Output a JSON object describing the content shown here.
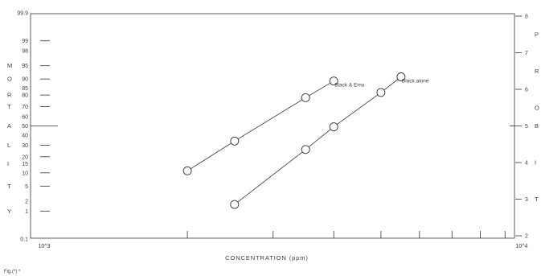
{
  "caption": "Fig.(*) *",
  "chart_data": {
    "type": "line",
    "xlabel": "CONCENTRATION (ppm)",
    "ylabel": "MORTALITY",
    "y2label": "PROBIT",
    "xscale": "log",
    "xlim": [
      1000,
      10000
    ],
    "x_end_labels": [
      "10^3",
      "10^4"
    ],
    "x_minor_ticks": [
      2000,
      3000,
      4000,
      5000,
      6000,
      7000,
      8000,
      9000
    ],
    "yscale": "probit",
    "y_tick_labels": [
      "99.9",
      "99",
      "98",
      "95",
      "90",
      "85",
      "80",
      "70",
      "60",
      "50",
      "40",
      "30",
      "20",
      "15",
      "10",
      "5",
      "2",
      "1",
      "0.1"
    ],
    "y_tick_marks": [
      99,
      95,
      90,
      80,
      70,
      50,
      30,
      20,
      10,
      5,
      1
    ],
    "y2lim": [
      2,
      8
    ],
    "y2_ticks": [
      8,
      7,
      6,
      5,
      4,
      3,
      2
    ],
    "grid": false,
    "series": [
      {
        "name": "Black & Emu",
        "x": [
          2000,
          2500,
          3500,
          4000
        ],
        "y": [
          11,
          34,
          78,
          89
        ]
      },
      {
        "name": "Black alone",
        "x": [
          2500,
          3500,
          4000,
          5000,
          5500
        ],
        "y": [
          1.6,
          26,
          49,
          82,
          91
        ]
      }
    ]
  }
}
